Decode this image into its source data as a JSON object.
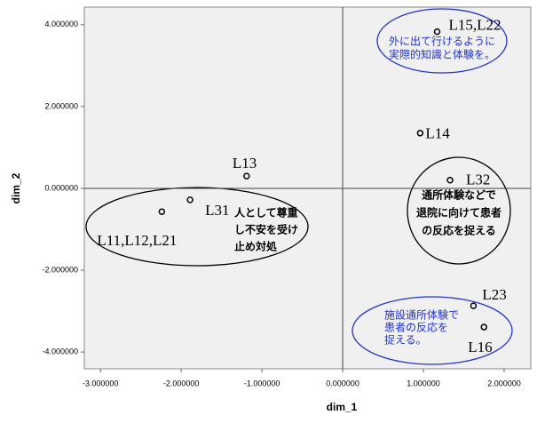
{
  "chart_data": {
    "type": "scatter",
    "x_label": "dim_1",
    "y_label": "dim_2",
    "xlim": [
      -3.2,
      2.33
    ],
    "ylim": [
      -4.41,
      4.43
    ],
    "xticks": [
      {
        "value": -3,
        "label": "-3.000000"
      },
      {
        "value": -2,
        "label": "-2.000000"
      },
      {
        "value": -1,
        "label": "-1.000000"
      },
      {
        "value": 0,
        "label": "0.000000"
      },
      {
        "value": 1,
        "label": "1.000000"
      },
      {
        "value": 2,
        "label": "2.000000"
      }
    ],
    "yticks": [
      {
        "value": 4,
        "label": "4.000000"
      },
      {
        "value": 2,
        "label": "2.000000"
      },
      {
        "value": 0,
        "label": "0.000000"
      },
      {
        "value": -2,
        "label": "-2.000000"
      },
      {
        "value": -4,
        "label": "-4.000000"
      }
    ],
    "labels": [
      "L15,L22",
      "L14",
      "L32",
      "L13",
      "L31",
      "L11,L12,L21",
      "L23",
      "L16"
    ],
    "x": [
      1.17,
      0.96,
      1.33,
      -1.19,
      -1.89,
      -2.24,
      1.62,
      1.75
    ],
    "y": [
      3.83,
      1.35,
      0.2,
      0.3,
      -0.28,
      -0.57,
      -2.87,
      -3.39
    ],
    "color": "#000000",
    "annotations": [
      {
        "lines": [
          "外に出て行けるように",
          "実際的知識と体験を。"
        ]
      },
      {
        "lines": [
          "通所体験などで",
          "退院に向けて患者",
          "の反応を捉える"
        ]
      },
      {
        "lines": [
          "人として尊重",
          "し不安を受け",
          "止め対処"
        ]
      },
      {
        "lines": [
          "施設通所体験で",
          "患者の反応を",
          "捉える。"
        ]
      }
    ]
  }
}
